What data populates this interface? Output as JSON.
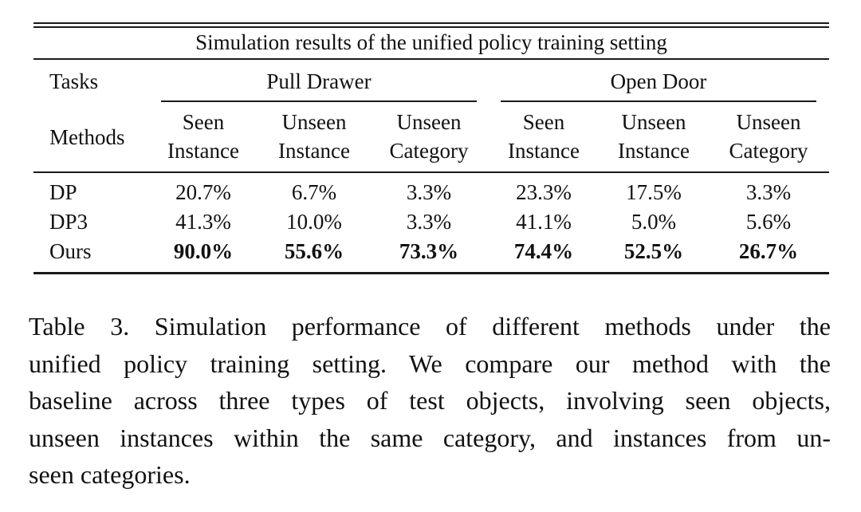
{
  "table": {
    "title": "Simulation results of the unified policy training setting",
    "tasks_label": "Tasks",
    "methods_label": "Methods",
    "groups": [
      {
        "name": "Pull Drawer",
        "columns": [
          {
            "line1": "Seen",
            "line2": "Instance"
          },
          {
            "line1": "Unseen",
            "line2": "Instance"
          },
          {
            "line1": "Unseen",
            "line2": "Category"
          }
        ]
      },
      {
        "name": "Open Door",
        "columns": [
          {
            "line1": "Seen",
            "line2": "Instance"
          },
          {
            "line1": "Unseen",
            "line2": "Instance"
          },
          {
            "line1": "Unseen",
            "line2": "Category"
          }
        ]
      }
    ],
    "rows": [
      {
        "method": "DP",
        "bold": false,
        "values": [
          "20.7%",
          "6.7%",
          "3.3%",
          "23.3%",
          "17.5%",
          "3.3%"
        ]
      },
      {
        "method": "DP3",
        "bold": false,
        "values": [
          "41.3%",
          "10.0%",
          "3.3%",
          "41.1%",
          "5.0%",
          "5.6%"
        ]
      },
      {
        "method": "Ours",
        "bold": true,
        "values": [
          "90.0%",
          "55.6%",
          "73.3%",
          "74.4%",
          "52.5%",
          "26.7%"
        ]
      }
    ]
  },
  "caption": {
    "lines": [
      "Table 3.  Simulation performance of different methods under the",
      "unified policy training setting.  We compare our method with the",
      "baseline across three types of test objects, involving seen objects,",
      "unseen instances within the same category, and instances from un-",
      "seen categories."
    ]
  }
}
